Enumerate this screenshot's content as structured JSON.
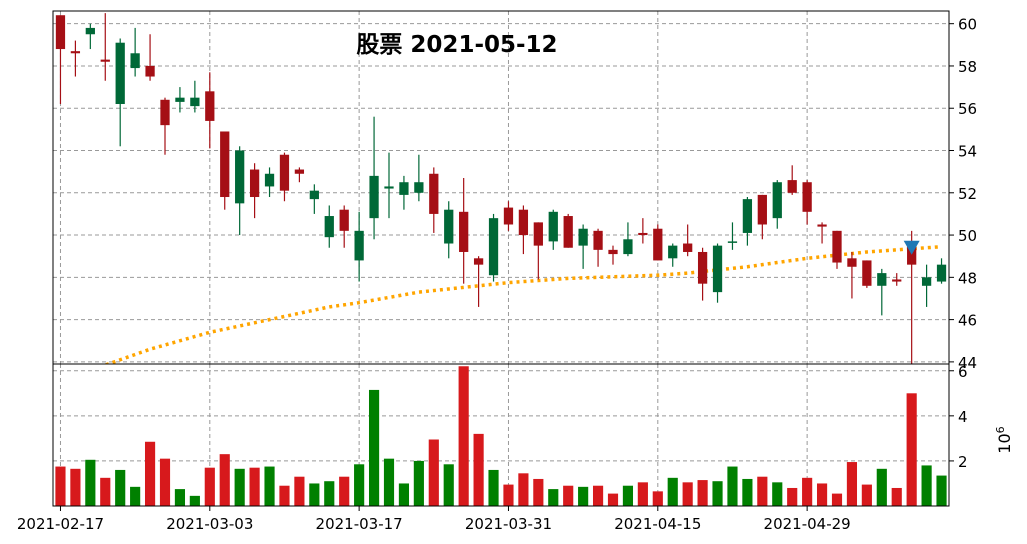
{
  "chart_data": {
    "type": "candlestick",
    "title": "股票 2021-05-12",
    "dates": [
      "2021-02-17",
      "2021-02-18",
      "2021-02-19",
      "2021-02-22",
      "2021-02-23",
      "2021-02-24",
      "2021-02-25",
      "2021-02-26",
      "2021-03-01",
      "2021-03-02",
      "2021-03-03",
      "2021-03-04",
      "2021-03-05",
      "2021-03-08",
      "2021-03-09",
      "2021-03-10",
      "2021-03-11",
      "2021-03-12",
      "2021-03-15",
      "2021-03-16",
      "2021-03-17",
      "2021-03-18",
      "2021-03-19",
      "2021-03-22",
      "2021-03-23",
      "2021-03-24",
      "2021-03-25",
      "2021-03-26",
      "2021-03-29",
      "2021-03-30",
      "2021-03-31",
      "2021-04-01",
      "2021-04-02",
      "2021-04-06",
      "2021-04-07",
      "2021-04-08",
      "2021-04-09",
      "2021-04-12",
      "2021-04-13",
      "2021-04-14",
      "2021-04-15",
      "2021-04-16",
      "2021-04-19",
      "2021-04-20",
      "2021-04-21",
      "2021-04-22",
      "2021-04-23",
      "2021-04-26",
      "2021-04-27",
      "2021-04-28",
      "2021-04-29",
      "2021-04-30",
      "2021-05-03",
      "2021-05-04",
      "2021-05-05",
      "2021-05-06",
      "2021-05-07",
      "2021-05-10",
      "2021-05-11",
      "2021-05-12"
    ],
    "x_tick_labels": [
      "2021-02-17",
      "2021-03-03",
      "2021-03-17",
      "2021-03-31",
      "2021-04-15",
      "2021-04-29"
    ],
    "x_tick_indices": [
      0,
      10,
      20,
      30,
      40,
      50
    ],
    "price_axis": {
      "ylim": [
        43.9,
        60.6
      ],
      "ticks": [
        44,
        46,
        48,
        50,
        52,
        54,
        56,
        58,
        60
      ]
    },
    "volume_axis": {
      "ylim": [
        0,
        6.3
      ],
      "ticks": [
        2,
        4,
        6
      ],
      "scale_label": "10^6"
    },
    "colors": {
      "up": "#006837",
      "down": "#a50f15",
      "vol_up": "#008000",
      "vol_down": "#d7191c",
      "ma": "#ffa500",
      "marker": "#1f77b4",
      "grid": "#999999"
    },
    "ohlc": [
      [
        60.4,
        60.4,
        56.2,
        58.8
      ],
      [
        58.7,
        59.2,
        57.5,
        58.6
      ],
      [
        59.5,
        60.0,
        58.8,
        59.8
      ],
      [
        58.3,
        60.5,
        57.3,
        58.2
      ],
      [
        56.2,
        59.3,
        54.2,
        59.1
      ],
      [
        57.9,
        59.8,
        57.5,
        58.6
      ],
      [
        58.0,
        59.5,
        57.3,
        57.5
      ],
      [
        56.4,
        56.5,
        53.8,
        55.2
      ],
      [
        56.3,
        57.0,
        55.8,
        56.5
      ],
      [
        56.1,
        57.3,
        55.8,
        56.5
      ],
      [
        56.8,
        57.7,
        54.1,
        55.4
      ],
      [
        54.9,
        54.9,
        51.2,
        51.8
      ],
      [
        51.5,
        54.2,
        50.0,
        54.0
      ],
      [
        53.1,
        53.4,
        50.8,
        51.8
      ],
      [
        52.3,
        53.2,
        51.8,
        52.9
      ],
      [
        53.8,
        53.9,
        51.6,
        52.1
      ],
      [
        53.1,
        53.2,
        52.5,
        52.9
      ],
      [
        51.7,
        52.4,
        51.0,
        52.1
      ],
      [
        49.9,
        51.4,
        49.4,
        50.9
      ],
      [
        51.2,
        51.4,
        49.4,
        50.2
      ],
      [
        48.8,
        51.1,
        47.8,
        50.2
      ],
      [
        50.8,
        55.6,
        49.8,
        52.8
      ],
      [
        52.2,
        53.9,
        50.8,
        52.3
      ],
      [
        51.9,
        52.8,
        51.2,
        52.5
      ],
      [
        52.0,
        53.8,
        51.6,
        52.5
      ],
      [
        52.9,
        53.2,
        50.1,
        51.0
      ],
      [
        49.6,
        51.6,
        48.9,
        51.2
      ],
      [
        51.1,
        52.7,
        47.7,
        49.2
      ],
      [
        48.9,
        49.0,
        46.6,
        48.6
      ],
      [
        48.1,
        51.0,
        47.8,
        50.8
      ],
      [
        51.3,
        51.6,
        50.2,
        50.5
      ],
      [
        51.2,
        51.4,
        49.1,
        50.0
      ],
      [
        50.6,
        50.6,
        47.9,
        49.5
      ],
      [
        49.7,
        51.2,
        49.3,
        51.1
      ],
      [
        50.9,
        51.0,
        49.4,
        49.4
      ],
      [
        49.5,
        50.5,
        48.4,
        50.3
      ],
      [
        50.2,
        50.3,
        48.5,
        49.3
      ],
      [
        49.3,
        49.5,
        48.6,
        49.1
      ],
      [
        49.1,
        50.6,
        49.0,
        49.8
      ],
      [
        50.1,
        50.8,
        49.6,
        50.0
      ],
      [
        50.3,
        50.5,
        48.8,
        48.8
      ],
      [
        48.9,
        49.6,
        48.5,
        49.5
      ],
      [
        49.6,
        50.5,
        49.0,
        49.2
      ],
      [
        49.2,
        49.4,
        46.9,
        47.7
      ],
      [
        47.3,
        49.6,
        46.8,
        49.5
      ],
      [
        49.7,
        50.6,
        49.3,
        49.7
      ],
      [
        50.1,
        51.8,
        49.5,
        51.7
      ],
      [
        51.9,
        51.9,
        49.8,
        50.5
      ],
      [
        50.8,
        52.6,
        50.3,
        52.5
      ],
      [
        52.6,
        53.3,
        51.9,
        52.0
      ],
      [
        52.5,
        52.6,
        50.5,
        51.1
      ],
      [
        50.5,
        50.6,
        49.6,
        50.4
      ],
      [
        50.2,
        50.2,
        48.4,
        48.7
      ],
      [
        48.9,
        49.2,
        47.0,
        48.5
      ],
      [
        48.8,
        48.8,
        47.5,
        47.6
      ],
      [
        47.6,
        48.4,
        46.2,
        48.2
      ],
      [
        47.9,
        48.2,
        47.6,
        47.8
      ],
      [
        49.6,
        50.2,
        43.9,
        48.6
      ],
      [
        47.6,
        48.6,
        46.6,
        48.0
      ],
      [
        47.8,
        48.9,
        47.7,
        48.6
      ]
    ],
    "volume": [
      1.75,
      1.65,
      2.05,
      1.25,
      1.6,
      0.85,
      2.85,
      2.1,
      0.75,
      0.45,
      1.7,
      2.3,
      1.65,
      1.7,
      1.75,
      0.9,
      1.3,
      1.0,
      1.1,
      1.3,
      1.85,
      5.15,
      2.1,
      1.0,
      2.0,
      2.95,
      1.85,
      6.2,
      3.2,
      1.6,
      0.95,
      1.45,
      1.2,
      0.75,
      0.9,
      0.85,
      0.9,
      0.55,
      0.9,
      1.05,
      0.65,
      1.25,
      1.05,
      1.15,
      1.1,
      1.75,
      1.2,
      1.3,
      1.05,
      0.8,
      1.25,
      1.0,
      0.55,
      1.95,
      0.95,
      1.65,
      0.8,
      5.0,
      1.8,
      1.35
    ],
    "moving_average": [
      [
        0,
        43.0
      ],
      [
        2,
        43.6
      ],
      [
        4,
        44.1
      ],
      [
        6,
        44.6
      ],
      [
        8,
        45.0
      ],
      [
        10,
        45.4
      ],
      [
        12,
        45.7
      ],
      [
        14,
        46.0
      ],
      [
        16,
        46.3
      ],
      [
        18,
        46.6
      ],
      [
        20,
        46.8
      ],
      [
        22,
        47.05
      ],
      [
        24,
        47.3
      ],
      [
        26,
        47.45
      ],
      [
        28,
        47.6
      ],
      [
        30,
        47.75
      ],
      [
        32,
        47.85
      ],
      [
        34,
        47.95
      ],
      [
        36,
        48.0
      ],
      [
        38,
        48.05
      ],
      [
        40,
        48.1
      ],
      [
        42,
        48.2
      ],
      [
        44,
        48.35
      ],
      [
        46,
        48.5
      ],
      [
        48,
        48.7
      ],
      [
        50,
        48.9
      ],
      [
        52,
        49.05
      ],
      [
        54,
        49.2
      ],
      [
        56,
        49.3
      ],
      [
        58,
        49.4
      ],
      [
        59,
        49.45
      ]
    ],
    "marker": {
      "index": 57,
      "value": 49.4
    }
  }
}
